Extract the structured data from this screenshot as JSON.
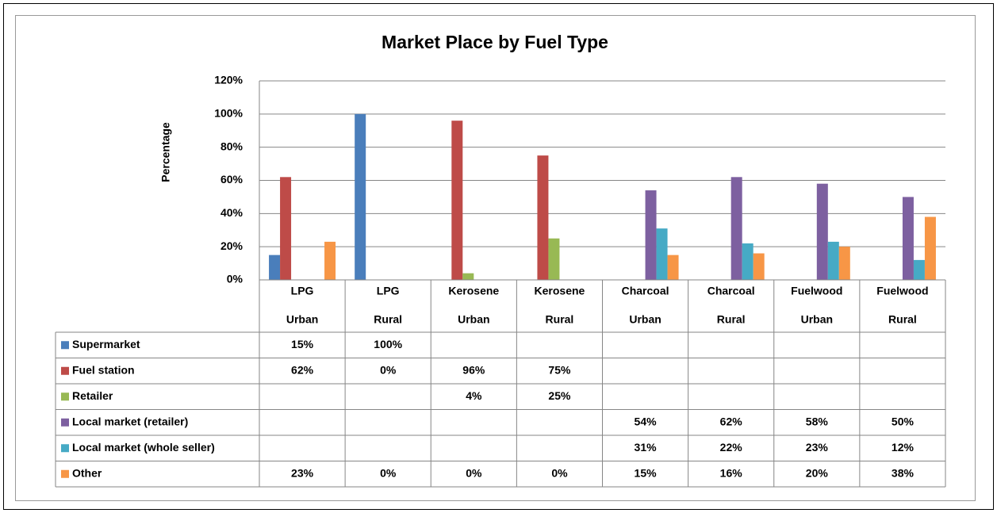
{
  "chart_data": {
    "type": "bar",
    "title": "Market Place by Fuel Type",
    "y_label": "Percentage",
    "categories": [
      [
        "LPG",
        "Urban"
      ],
      [
        "LPG",
        "Rural"
      ],
      [
        "Kerosene",
        "Urban"
      ],
      [
        "Kerosene",
        "Rural"
      ],
      [
        "Charcoal",
        "Urban"
      ],
      [
        "Charcoal",
        "Rural"
      ],
      [
        "Fuelwood",
        "Urban"
      ],
      [
        "Fuelwood",
        "Rural"
      ]
    ],
    "series": [
      {
        "name": "Supermarket",
        "color": "#4a7ebb",
        "values": [
          15,
          100,
          null,
          null,
          null,
          null,
          null,
          null
        ],
        "value_labels": [
          "15%",
          "100%",
          null,
          null,
          null,
          null,
          null,
          null
        ]
      },
      {
        "name": "Fuel station",
        "color": "#be4b48",
        "values": [
          62,
          0,
          96,
          75,
          null,
          null,
          null,
          null
        ],
        "value_labels": [
          "62%",
          "0%",
          "96%",
          "75%",
          null,
          null,
          null,
          null
        ]
      },
      {
        "name": "Retailer",
        "color": "#98b954",
        "values": [
          null,
          null,
          4,
          25,
          null,
          null,
          null,
          null
        ],
        "value_labels": [
          null,
          null,
          "4%",
          "25%",
          null,
          null,
          null,
          null
        ]
      },
      {
        "name": "Local market (retailer)",
        "color": "#7d60a0",
        "values": [
          null,
          null,
          null,
          null,
          54,
          62,
          58,
          50
        ],
        "value_labels": [
          null,
          null,
          null,
          null,
          "54%",
          "62%",
          "58%",
          "50%"
        ]
      },
      {
        "name": "Local market (whole seller)",
        "color": "#46aac5",
        "values": [
          null,
          null,
          null,
          null,
          31,
          22,
          23,
          12
        ],
        "value_labels": [
          null,
          null,
          null,
          null,
          "31%",
          "22%",
          "23%",
          "12%"
        ]
      },
      {
        "name": "Other",
        "color": "#f79646",
        "values": [
          23,
          0,
          0,
          0,
          15,
          16,
          20,
          38
        ],
        "value_labels": [
          "23%",
          "0%",
          "0%",
          "0%",
          "15%",
          "16%",
          "20%",
          "38%"
        ]
      }
    ],
    "ylim": [
      0,
      120
    ],
    "yticks": [
      {
        "value": 0,
        "label": "0%"
      },
      {
        "value": 20,
        "label": "20%"
      },
      {
        "value": 40,
        "label": "40%"
      },
      {
        "value": 60,
        "label": "60%"
      },
      {
        "value": 80,
        "label": "80%"
      },
      {
        "value": 100,
        "label": "100%"
      },
      {
        "value": 120,
        "label": "120%"
      }
    ],
    "grid": true
  }
}
